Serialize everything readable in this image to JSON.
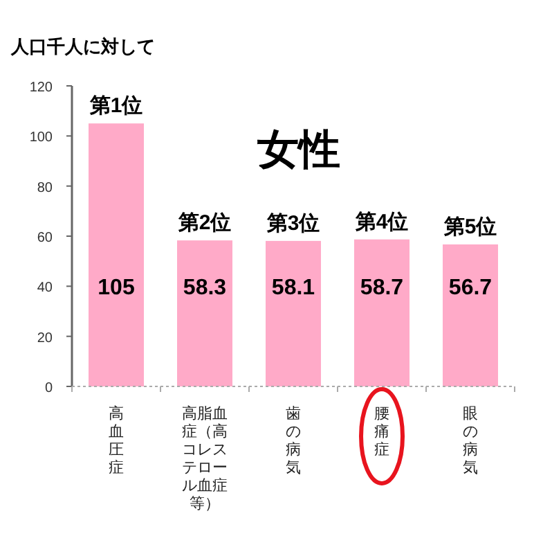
{
  "chart_data": {
    "type": "bar",
    "title": "女性",
    "ylabel": "人口千人に対して",
    "categories": [
      "高血圧症",
      "高脂血症（高コレステロール血症等）",
      "歯の病気",
      "腰痛症",
      "眼の病気"
    ],
    "values": [
      105,
      58.3,
      58.1,
      58.7,
      56.7
    ],
    "color": "#ffaac8",
    "ylim": [
      0,
      120
    ],
    "yticks": [
      0,
      20,
      40,
      60,
      80,
      100,
      120
    ],
    "grid": false,
    "data_labels": true,
    "annotations": [
      {
        "text": "第1位",
        "x": "高血圧症",
        "y": 105
      },
      {
        "text": "第2位",
        "x": "高脂血症（高コレステロール血症等）",
        "y": 58.3
      },
      {
        "text": "第3位",
        "x": "歯の病気",
        "y": 58.1
      },
      {
        "text": "第4位",
        "x": "腰痛症",
        "y": 58.7
      },
      {
        "text": "第5位",
        "x": "眼の病気",
        "y": 56.7
      }
    ]
  }
}
